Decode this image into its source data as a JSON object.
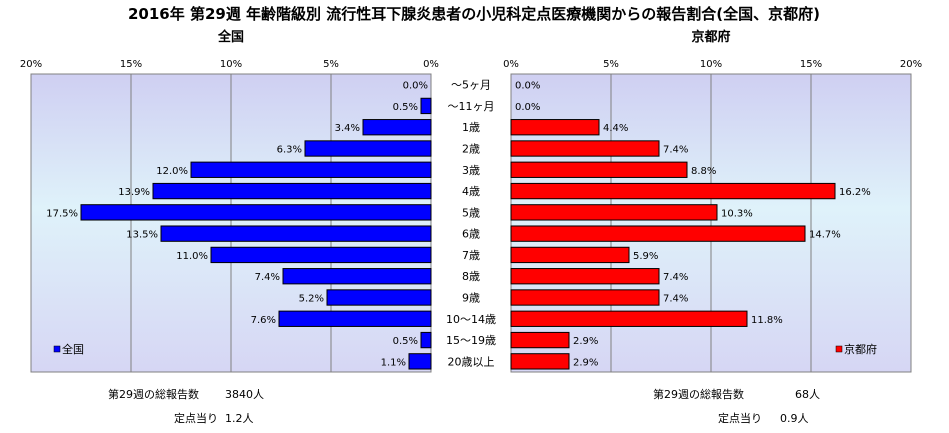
{
  "chart_data": {
    "type": "bar",
    "orientation": "horizontal",
    "layout": "back-to-back",
    "title": "2016年 第29週 年齢階級別 流行性耳下腺炎患者の小児科定点医療機関からの報告割合(全国、京都府)",
    "categories": [
      "〜5ヶ月",
      "〜11ヶ月",
      "1歳",
      "2歳",
      "3歳",
      "4歳",
      "5歳",
      "6歳",
      "7歳",
      "8歳",
      "9歳",
      "10〜14歳",
      "15〜19歳",
      "20歳以上"
    ],
    "xlim": [
      0,
      20
    ],
    "x_ticks": [
      0,
      5,
      10,
      15,
      20
    ],
    "x_tick_labels": [
      "0%",
      "5%",
      "10%",
      "15%",
      "20%"
    ],
    "grid": true,
    "series": [
      {
        "name": "全国",
        "panel_title": "全国",
        "side": "left",
        "color": "#0000ff",
        "values": [
          0.0,
          0.5,
          3.4,
          6.3,
          12.0,
          13.9,
          17.5,
          13.5,
          11.0,
          7.4,
          5.2,
          7.6,
          0.5,
          1.1
        ],
        "value_labels": [
          "0.0%",
          "0.5%",
          "3.4%",
          "6.3%",
          "12.0%",
          "13.9%",
          "17.5%",
          "13.5%",
          "11.0%",
          "7.4%",
          "5.2%",
          "7.6%",
          "0.5%",
          "1.1%"
        ],
        "legend_label": "全国",
        "legend_position": "bottom-left"
      },
      {
        "name": "京都府",
        "panel_title": "京都府",
        "side": "right",
        "color": "#ff0000",
        "values": [
          0.0,
          0.0,
          4.4,
          7.4,
          8.8,
          16.2,
          10.3,
          14.7,
          5.9,
          7.4,
          7.4,
          11.8,
          2.9,
          2.9
        ],
        "value_labels": [
          "0.0%",
          "0.0%",
          "4.4%",
          "7.4%",
          "8.8%",
          "16.2%",
          "10.3%",
          "14.7%",
          "5.9%",
          "7.4%",
          "7.4%",
          "11.8%",
          "2.9%",
          "2.9%"
        ],
        "legend_label": "京都府",
        "legend_position": "bottom-right"
      }
    ],
    "footnotes": {
      "left": {
        "total_label": "第29週の総報告数",
        "total_value": "3840人",
        "per_site_label": "定点当り",
        "per_site_value": "1.2人"
      },
      "right": {
        "total_label": "第29週の総報告数",
        "total_value": "68人",
        "per_site_label": "定点当り",
        "per_site_value": "0.9人"
      }
    }
  }
}
